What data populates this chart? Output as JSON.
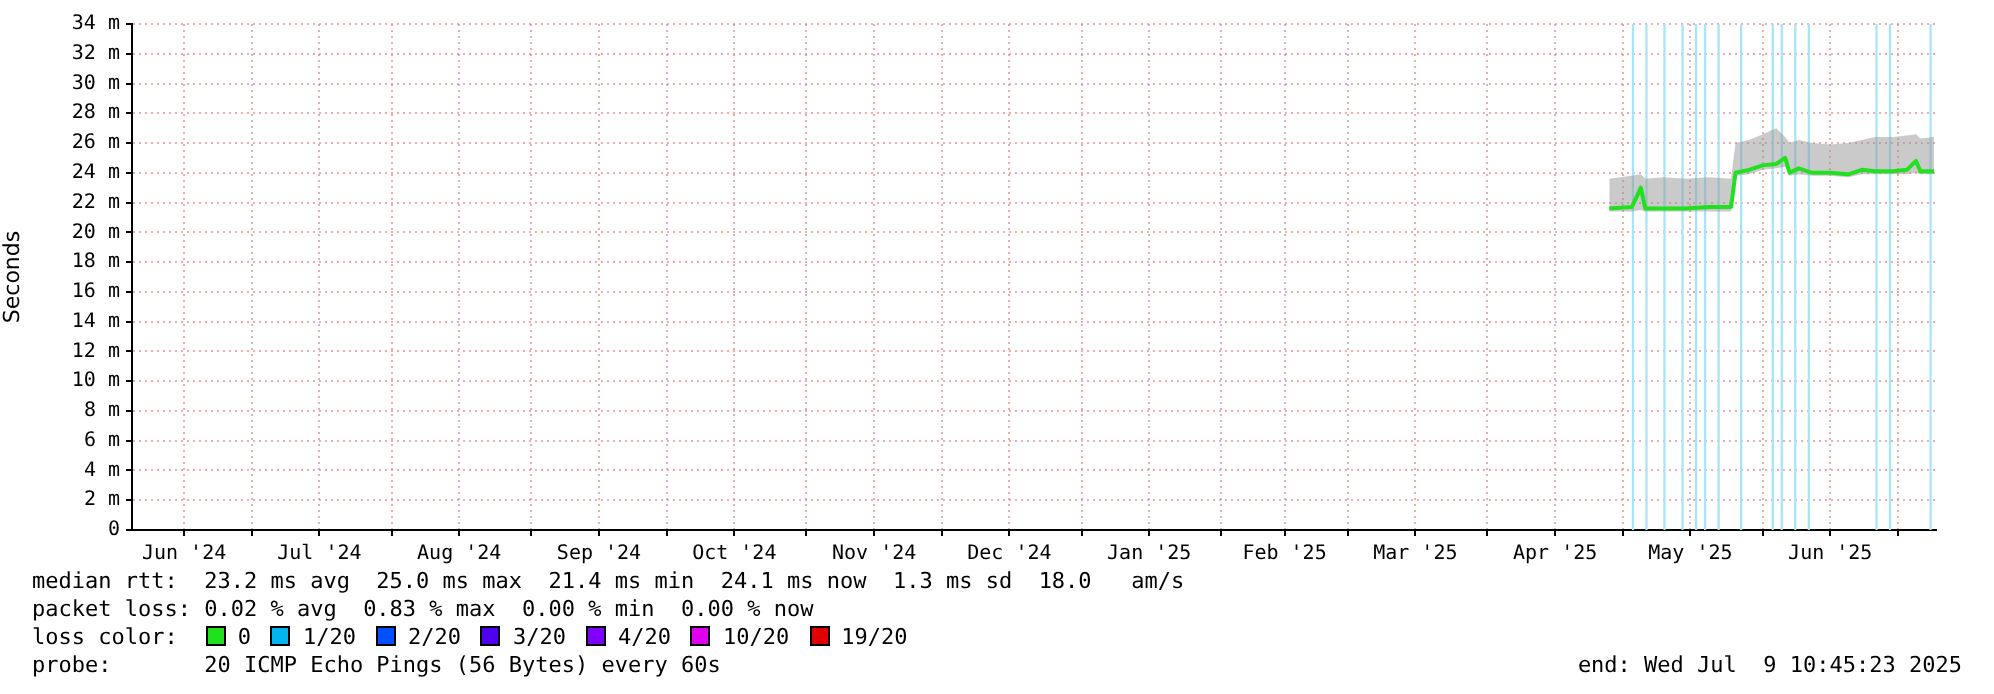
{
  "chart_data": {
    "type": "line",
    "ylabel": "Seconds",
    "legend_title": "loss color:",
    "legend": "bottom",
    "grid": true,
    "marker": "none",
    "xlim": [
      "2024-06-04T10:45",
      "2025-07-09T10:45"
    ],
    "xticks": [
      {
        "value": "2024-06-16",
        "label": "Jun '24"
      },
      {
        "value": "2024-07-01",
        "label": null
      },
      {
        "value": "2024-07-16",
        "label": "Jul '24"
      },
      {
        "value": "2024-08-01",
        "label": null
      },
      {
        "value": "2024-08-16",
        "label": "Aug '24"
      },
      {
        "value": "2024-09-01",
        "label": null
      },
      {
        "value": "2024-09-16",
        "label": "Sep '24"
      },
      {
        "value": "2024-10-01",
        "label": null
      },
      {
        "value": "2024-10-16",
        "label": "Oct '24"
      },
      {
        "value": "2024-11-01",
        "label": null
      },
      {
        "value": "2024-11-16",
        "label": "Nov '24"
      },
      {
        "value": "2024-12-01",
        "label": null
      },
      {
        "value": "2024-12-16",
        "label": "Dec '24"
      },
      {
        "value": "2025-01-01",
        "label": null
      },
      {
        "value": "2025-01-16",
        "label": "Jan '25"
      },
      {
        "value": "2025-02-01",
        "label": null
      },
      {
        "value": "2025-02-15",
        "label": "Feb '25"
      },
      {
        "value": "2025-03-01",
        "label": null
      },
      {
        "value": "2025-03-16",
        "label": "Mar '25"
      },
      {
        "value": "2025-04-01",
        "label": null
      },
      {
        "value": "2025-04-16",
        "label": "Apr '25"
      },
      {
        "value": "2025-05-01",
        "label": null
      },
      {
        "value": "2025-05-16",
        "label": "May '25"
      },
      {
        "value": "2025-06-01",
        "label": null
      },
      {
        "value": "2025-06-16",
        "label": "Jun '25"
      },
      {
        "value": "2025-07-01",
        "label": null
      }
    ],
    "ylim": [
      0,
      34
    ],
    "yticks": [
      0,
      {
        "value": 2,
        "label": "2 m"
      },
      {
        "value": 4,
        "label": "4 m"
      },
      {
        "value": 6,
        "label": "6 m"
      },
      {
        "value": 8,
        "label": "8 m"
      },
      {
        "value": 10,
        "label": "10 m"
      },
      {
        "value": 12,
        "label": "12 m"
      },
      {
        "value": 14,
        "label": "14 m"
      },
      {
        "value": 16,
        "label": "16 m"
      },
      {
        "value": 18,
        "label": "18 m"
      },
      {
        "value": 20,
        "label": "20 m"
      },
      {
        "value": 22,
        "label": "22 m"
      },
      {
        "value": 24,
        "label": "24 m"
      },
      {
        "value": 26,
        "label": "26 m"
      },
      {
        "value": 28,
        "label": "28 m"
      },
      {
        "value": 30,
        "label": "30 m"
      },
      {
        "value": 32,
        "label": "32 m"
      },
      {
        "value": 34,
        "label": "34 m"
      }
    ],
    "series": [
      {
        "name": "0",
        "color": "#20e020",
        "x": [
          "2025-04-28",
          "2025-05-03",
          "2025-05-05",
          "2025-05-06",
          "2025-05-10",
          "2025-05-15",
          "2025-05-20",
          "2025-05-25",
          "2025-05-26",
          "2025-05-29",
          "2025-06-01",
          "2025-06-04",
          "2025-06-06",
          "2025-06-07",
          "2025-06-09",
          "2025-06-12",
          "2025-06-16",
          "2025-06-20",
          "2025-06-23",
          "2025-06-26",
          "2025-06-30",
          "2025-07-03",
          "2025-07-05",
          "2025-07-06",
          "2025-07-09"
        ],
        "values": [
          21.6,
          21.7,
          23.0,
          21.6,
          21.6,
          21.6,
          21.7,
          21.7,
          24.0,
          24.2,
          24.5,
          24.6,
          25.0,
          24.0,
          24.3,
          24.0,
          24.0,
          23.9,
          24.2,
          24.1,
          24.1,
          24.2,
          24.8,
          24.1,
          24.1
        ],
        "lower": [
          21.4,
          21.4,
          21.5,
          21.4,
          21.4,
          21.4,
          21.4,
          21.4,
          23.8,
          23.9,
          24.2,
          24.3,
          24.4,
          23.8,
          23.9,
          23.8,
          23.8,
          23.7,
          23.9,
          23.9,
          23.9,
          23.9,
          24.0,
          23.9,
          23.9
        ],
        "upper": [
          23.6,
          23.8,
          23.9,
          23.6,
          23.7,
          23.6,
          23.7,
          23.6,
          26.0,
          26.2,
          26.6,
          27.0,
          26.4,
          26.0,
          26.2,
          26.0,
          25.9,
          26.0,
          26.2,
          26.4,
          26.4,
          26.5,
          26.6,
          26.3,
          26.4
        ]
      },
      {
        "name": "1/20",
        "color": "#00b4f0"
      },
      {
        "name": "2/20",
        "color": "#0050ff"
      },
      {
        "name": "3/20",
        "color": "#5000f0"
      },
      {
        "name": "4/20",
        "color": "#8000ff"
      },
      {
        "name": "10/20",
        "color": "#e000f0"
      },
      {
        "name": "19/20",
        "color": "#e00000"
      }
    ],
    "bands": [
      {
        "axis": "x",
        "from": "2025-05-03",
        "to": "2025-05-03T12:00",
        "color": "#a8e4f8"
      },
      {
        "axis": "x",
        "from": "2025-05-06",
        "to": "2025-05-06T12:00",
        "color": "#a8e4f8"
      },
      {
        "axis": "x",
        "from": "2025-05-10",
        "to": "2025-05-10T12:00",
        "color": "#a8e4f8"
      },
      {
        "axis": "x",
        "from": "2025-05-14",
        "to": "2025-05-14T12:00",
        "color": "#a8e4f8"
      },
      {
        "axis": "x",
        "from": "2025-05-17",
        "to": "2025-05-17T12:00",
        "color": "#a8e4f8"
      },
      {
        "axis": "x",
        "from": "2025-05-19",
        "to": "2025-05-19T12:00",
        "color": "#a8e4f8"
      },
      {
        "axis": "x",
        "from": "2025-05-22",
        "to": "2025-05-22T12:00",
        "color": "#a8e4f8"
      },
      {
        "axis": "x",
        "from": "2025-05-27",
        "to": "2025-05-27T12:00",
        "color": "#a8e4f8"
      },
      {
        "axis": "x",
        "from": "2025-06-03",
        "to": "2025-06-03T12:00",
        "color": "#a8e4f8"
      },
      {
        "axis": "x",
        "from": "2025-06-05",
        "to": "2025-06-05T12:00",
        "color": "#a8e4f8"
      },
      {
        "axis": "x",
        "from": "2025-06-08",
        "to": "2025-06-08T12:00",
        "color": "#a8e4f8"
      },
      {
        "axis": "x",
        "from": "2025-06-11",
        "to": "2025-06-11T12:00",
        "color": "#a8e4f8"
      },
      {
        "axis": "x",
        "from": "2025-06-26",
        "to": "2025-06-26T12:00",
        "color": "#a8e4f8"
      },
      {
        "axis": "x",
        "from": "2025-06-29",
        "to": "2025-06-29T12:00",
        "color": "#a8e4f8"
      },
      {
        "axis": "x",
        "from": "2025-07-08",
        "to": "2025-07-08T12:00",
        "color": "#a8e4f8"
      }
    ],
    "annotations": [
      "median rtt:  23.2 ms avg  25.0 ms max  21.4 ms min  24.1 ms now  1.3 ms sd  18.0   am/s",
      "packet loss: 0.02 % avg  0.83 % max  0.00 % min  0.00 % now",
      "probe:       20 ICMP Echo Pings (56 Bytes) every 60s",
      "end: Wed Jul  9 10:45:23 2025"
    ]
  }
}
